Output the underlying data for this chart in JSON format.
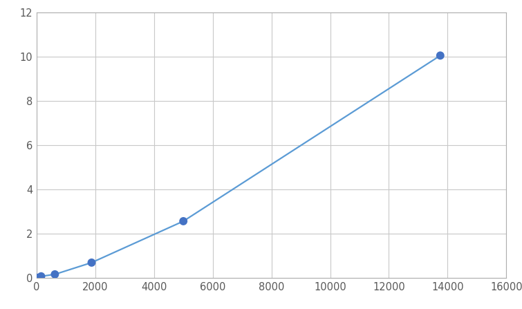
{
  "x": [
    0,
    156,
    625,
    1875,
    5000,
    13750
  ],
  "y": [
    0.02,
    0.08,
    0.17,
    0.7,
    2.57,
    10.05
  ],
  "line_color": "#5b9bd5",
  "marker_color": "#4472c4",
  "marker_size": 7,
  "line_width": 1.6,
  "xlim": [
    0,
    16000
  ],
  "ylim": [
    0,
    12
  ],
  "xticks": [
    0,
    2000,
    4000,
    6000,
    8000,
    10000,
    12000,
    14000,
    16000
  ],
  "yticks": [
    0,
    2,
    4,
    6,
    8,
    10,
    12
  ],
  "grid_color": "#c8c8c8",
  "background_color": "#ffffff",
  "figure_background": "#ffffff"
}
